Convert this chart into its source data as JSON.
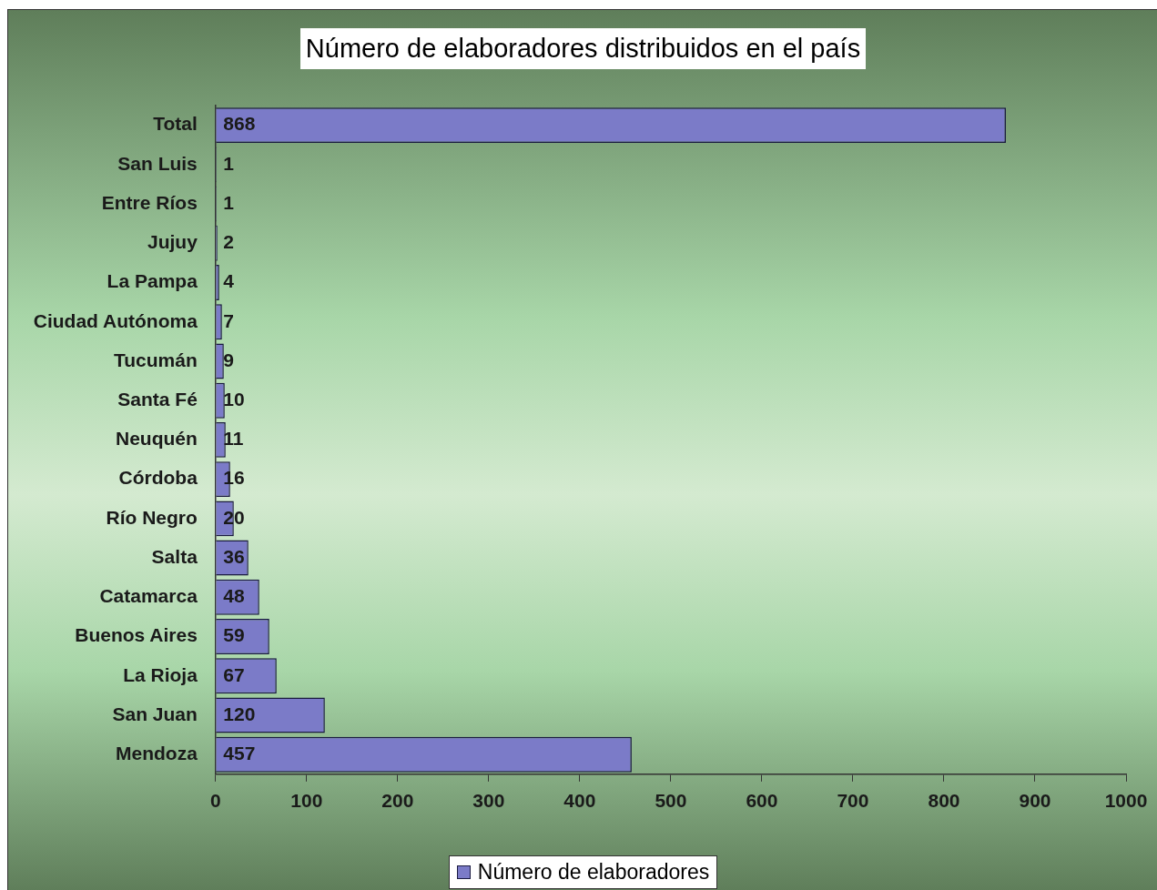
{
  "chart_data": {
    "type": "bar",
    "orientation": "horizontal",
    "title": "Número de elaboradores distribuidos en el país",
    "categories": [
      "Total",
      "San Luis",
      "Entre Ríos",
      "Jujuy",
      "La Pampa",
      "Ciudad Autónoma",
      "Tucumán",
      "Santa Fé",
      "Neuquén",
      "Córdoba",
      "Río Negro",
      "Salta",
      "Catamarca",
      "Buenos Aires",
      "La Rioja",
      "San Juan",
      "Mendoza"
    ],
    "series": [
      {
        "name": "Número de elaboradores",
        "color": "#7b7bc8",
        "values": [
          868,
          1,
          1,
          2,
          4,
          7,
          9,
          10,
          11,
          16,
          20,
          36,
          48,
          59,
          67,
          120,
          457
        ]
      }
    ],
    "xlim": [
      0,
      1000
    ],
    "xticks": [
      0,
      100,
      200,
      300,
      400,
      500,
      600,
      700,
      800,
      900,
      1000
    ],
    "data_labels": true,
    "grid": false,
    "legend": "bottom"
  }
}
